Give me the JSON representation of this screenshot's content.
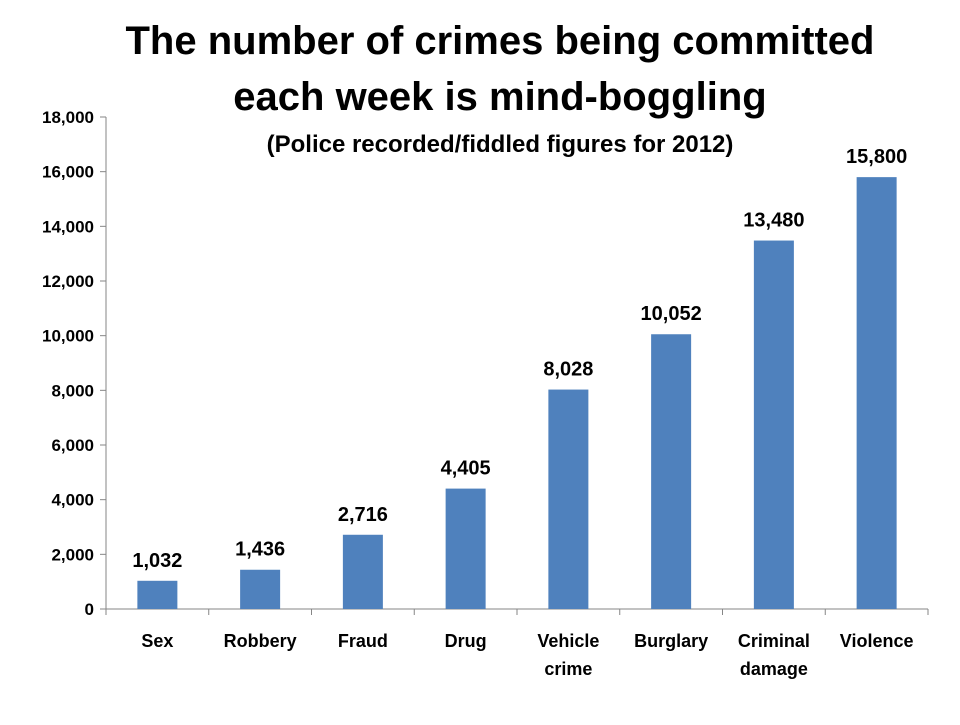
{
  "chart_data": {
    "type": "bar",
    "title_lines": [
      "The number of crimes being committed",
      "each week is mind-boggling"
    ],
    "subtitle": "(Police recorded/fiddled figures for 2012)",
    "categories": [
      [
        "Sex"
      ],
      [
        "Robbery"
      ],
      [
        "Fraud"
      ],
      [
        "Drug"
      ],
      [
        "Vehicle",
        "crime"
      ],
      [
        "Burglary"
      ],
      [
        "Criminal",
        "damage"
      ],
      [
        "Violence"
      ]
    ],
    "values": [
      1032,
      1436,
      2716,
      4405,
      8028,
      10052,
      13480,
      15800
    ],
    "data_labels": [
      "1,032",
      "1,436",
      "2,716",
      "4,405",
      "8,028",
      "10,052",
      "13,480",
      "15,800"
    ],
    "ylim": [
      0,
      18000
    ],
    "y_ticks": [
      0,
      2000,
      4000,
      6000,
      8000,
      10000,
      12000,
      14000,
      16000,
      18000
    ],
    "y_tick_labels": [
      "0",
      "2,000",
      "4,000",
      "6,000",
      "8,000",
      "10,000",
      "12,000",
      "14,000",
      "16,000",
      "18,000"
    ],
    "xlabel": "",
    "ylabel": "",
    "grid": false,
    "legend": "none",
    "bar_color": "#4f81bd",
    "axis_color": "#868686"
  }
}
